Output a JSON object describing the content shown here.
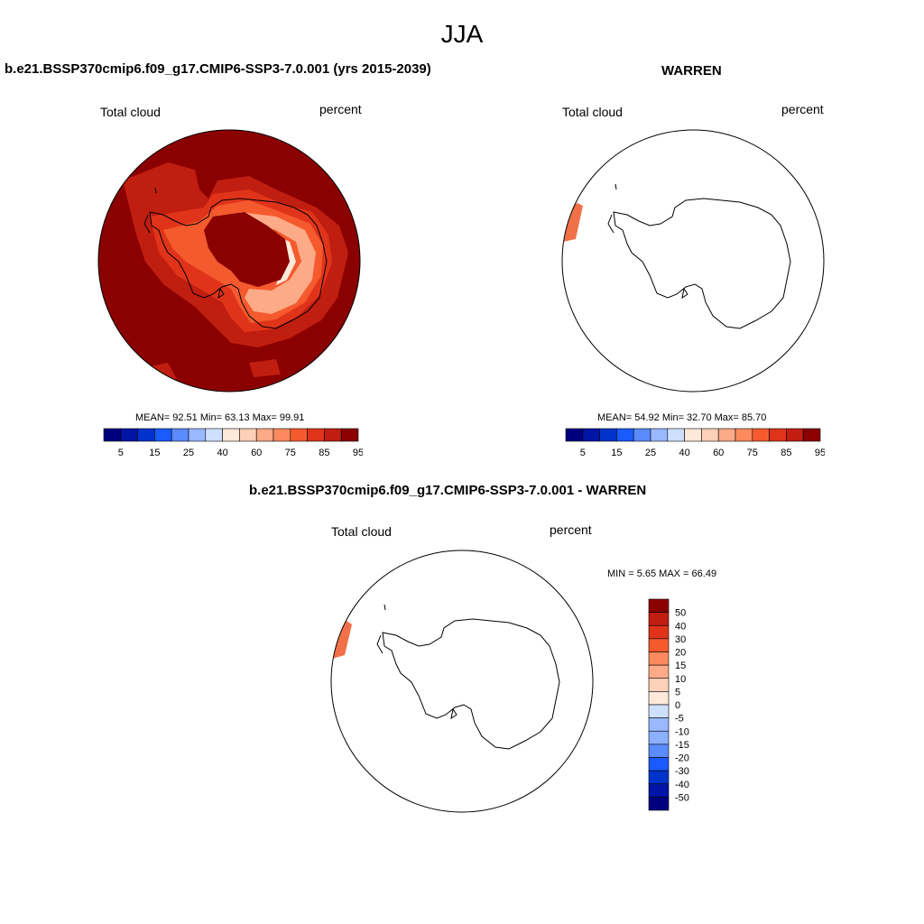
{
  "page_title": "JJA",
  "panels": [
    {
      "id": "left",
      "title": "b.e21.BSSP370cmip6.f09_g17.CMIP6-SSP3-7.0.001 (yrs 2015-2039)",
      "left_label": "Total cloud",
      "right_label": "percent",
      "stats": "MEAN=  92.51  Min=  63.13  Max=  99.91"
    },
    {
      "id": "right",
      "title": "WARREN",
      "left_label": "Total cloud",
      "right_label": "percent",
      "stats": "MEAN=  54.92  Min=  32.70  Max=  85.70"
    },
    {
      "id": "diff",
      "title": "b.e21.BSSP370cmip6.f09_g17.CMIP6-SSP3-7.0.001 - WARREN",
      "left_label": "Total cloud",
      "right_label": "percent",
      "stats": "MIN =   5.65 MAX =  66.49"
    }
  ],
  "colorbar_abs": {
    "colors": [
      "#00007f",
      "#0015a5",
      "#0033cc",
      "#1a5aff",
      "#5a8bff",
      "#99b8ff",
      "#cfe0ff",
      "#fde8d9",
      "#fdd0b8",
      "#fcaa88",
      "#fc8a5e",
      "#f55a2e",
      "#e0341a",
      "#c01e10",
      "#8b0000"
    ],
    "tick_labels": [
      "5",
      "15",
      "25",
      "40",
      "60",
      "75",
      "85",
      "95"
    ]
  },
  "colorbar_diff": {
    "colors": [
      "#8b0000",
      "#c01e10",
      "#e0341a",
      "#f55a2e",
      "#fc8a5e",
      "#fcaa88",
      "#fdd0b8",
      "#fde8d9",
      "#cfe0ff",
      "#99b8ff",
      "#8ab0ff",
      "#5a8bff",
      "#1a5aff",
      "#0033cc",
      "#0015a5",
      "#00007f"
    ],
    "tick_labels": [
      "50",
      "40",
      "30",
      "20",
      "15",
      "10",
      "5",
      "0",
      "-5",
      "-10",
      "-15",
      "-20",
      "-30",
      "-40",
      "-50"
    ]
  },
  "map_colors": {
    "ocean_dark": "#8b0000",
    "mid": "#c01e10",
    "orange": "#e0341a",
    "light_orange": "#f55a2e",
    "peach": "#fcaa88",
    "pale": "#fde8d9",
    "patch": "#f07048"
  }
}
